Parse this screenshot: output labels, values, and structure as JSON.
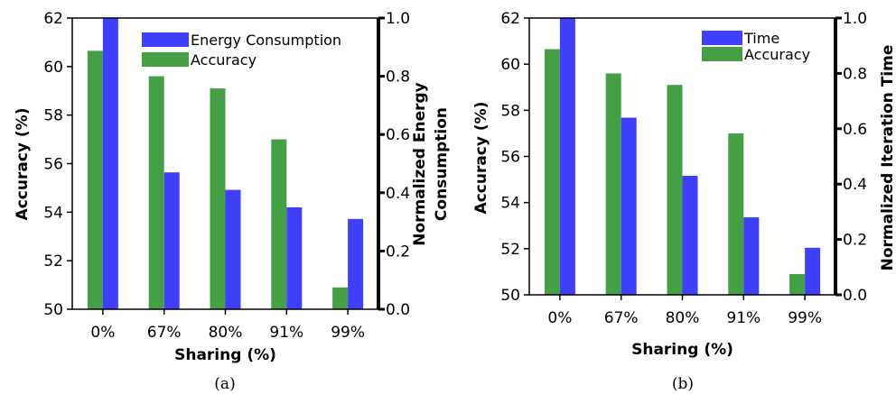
{
  "colors": {
    "primary_series": "#3f3ffe",
    "accuracy_series": "#45a045"
  },
  "chart_data": [
    {
      "type": "bar",
      "caption": "(a)",
      "categories": [
        "0%",
        "67%",
        "80%",
        "91%",
        "99%"
      ],
      "xlabel": "Sharing (%)",
      "ylabel": "Accuracy (%)",
      "ylim": [
        50,
        62
      ],
      "yticks": [
        "50",
        "52",
        "54",
        "56",
        "58",
        "60",
        "62"
      ],
      "y2label": [
        "Normalized Energy",
        "Consumption"
      ],
      "y2lim": [
        0,
        1
      ],
      "y2ticks": [
        "0.0",
        "0.2",
        "0.4",
        "0.6",
        "0.8",
        "1.0"
      ],
      "legend_position": "top-right",
      "series": [
        {
          "name": "Energy Consumption",
          "axis": "right",
          "values": [
            1.0,
            0.47,
            0.41,
            0.35,
            0.31
          ]
        },
        {
          "name": "Accuracy",
          "axis": "left",
          "values": [
            60.65,
            59.6,
            59.1,
            57.0,
            50.9
          ]
        }
      ]
    },
    {
      "type": "bar",
      "caption": "(b)",
      "categories": [
        "0%",
        "67%",
        "80%",
        "91%",
        "99%"
      ],
      "xlabel": "Sharing (%)",
      "ylabel": "Accuracy (%)",
      "ylim": [
        50,
        62
      ],
      "yticks": [
        "50",
        "52",
        "54",
        "56",
        "58",
        "60",
        "62"
      ],
      "y2label": [
        "Normalized Iteration Time"
      ],
      "y2lim": [
        0,
        1
      ],
      "y2ticks": [
        "0.0",
        "0.2",
        "0.4",
        "0.6",
        "0.8",
        "1.0"
      ],
      "legend_position": "top-right",
      "series": [
        {
          "name": "Time",
          "axis": "right",
          "values": [
            1.0,
            0.64,
            0.43,
            0.28,
            0.17
          ]
        },
        {
          "name": "Accuracy",
          "axis": "left",
          "values": [
            60.65,
            59.6,
            59.1,
            57.0,
            50.9
          ]
        }
      ]
    }
  ]
}
